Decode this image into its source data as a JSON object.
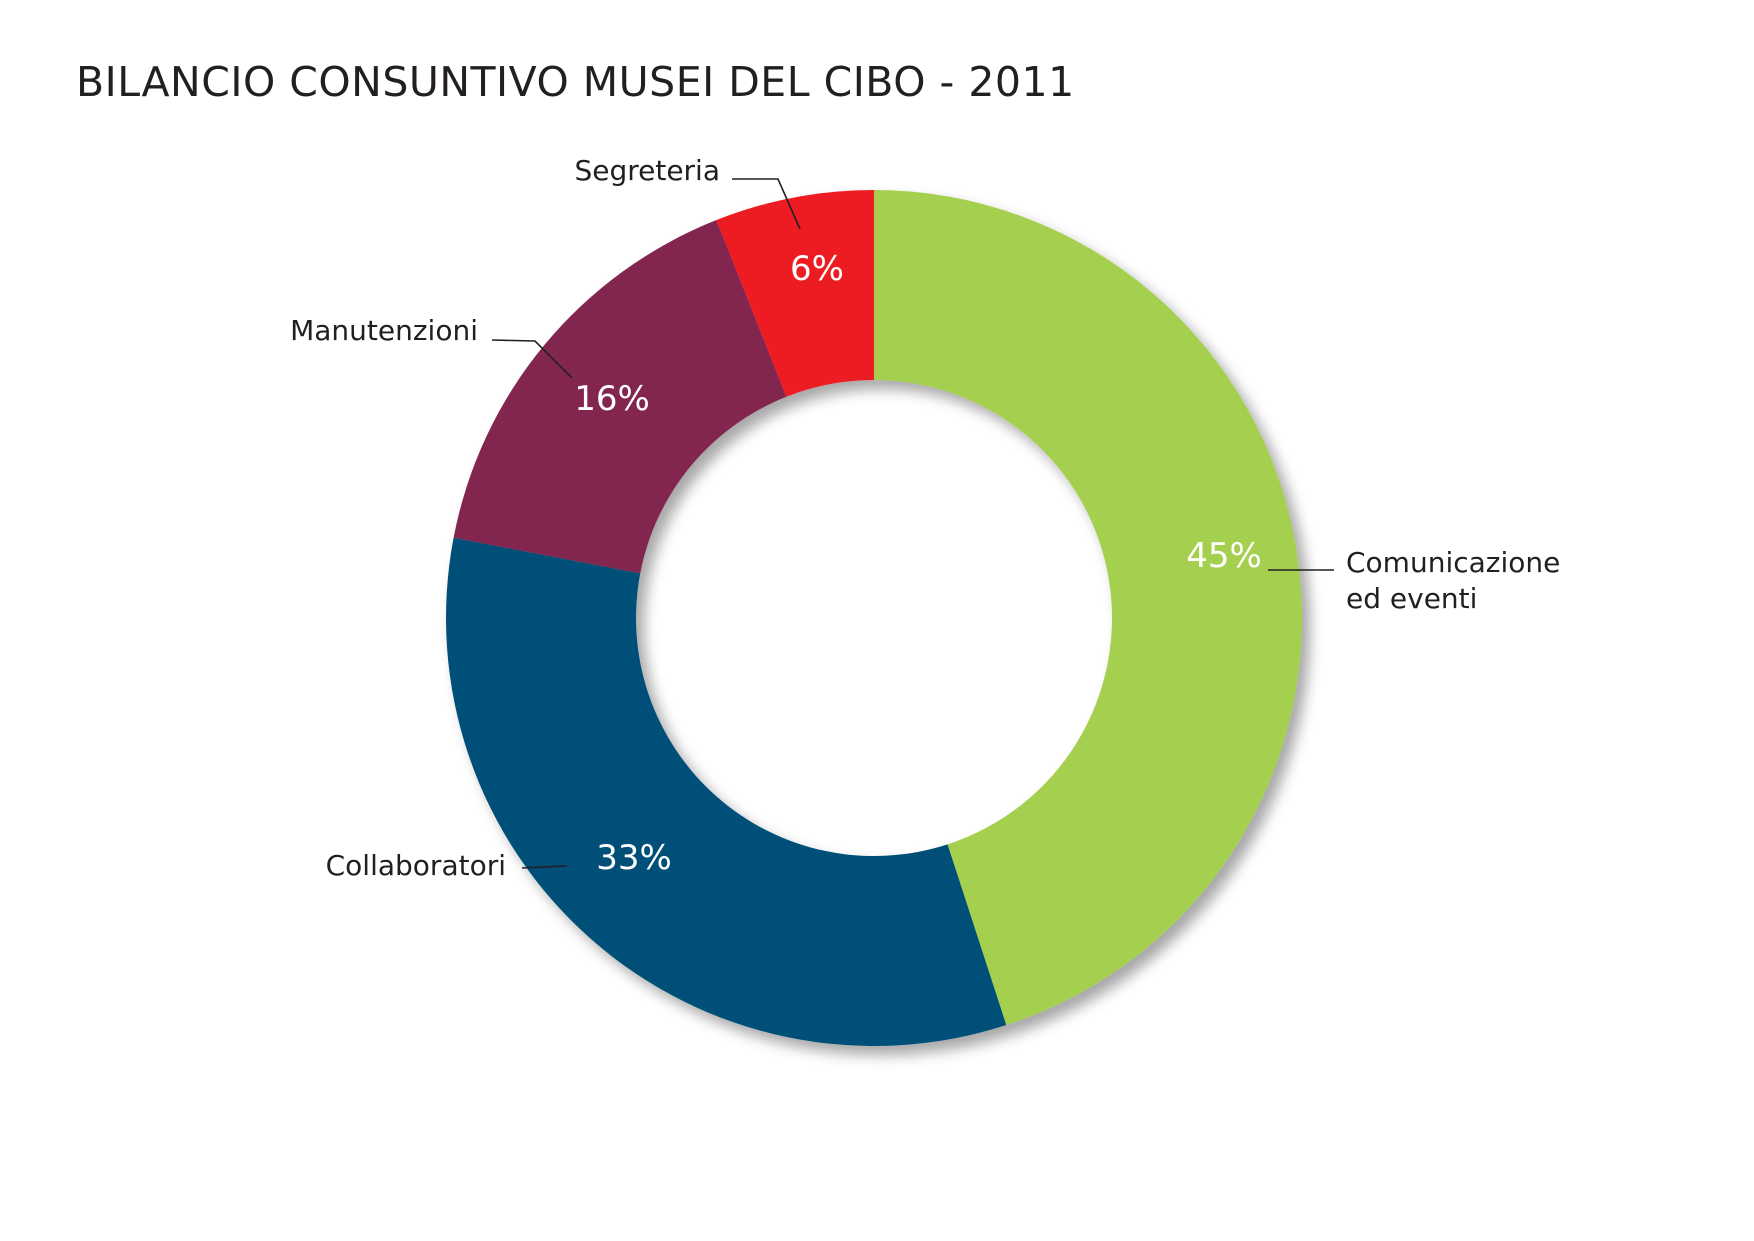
{
  "chart_data": {
    "type": "pie",
    "variant": "donut",
    "title": "BILANCIO CONSUNTIVO MUSEI DEL CIBO - 2011",
    "categories": [
      "Comunicazione ed eventi",
      "Collaboratori",
      "Manutenzioni",
      "Segreteria"
    ],
    "category_label_lines": [
      [
        "Comunicazione",
        "ed eventi"
      ],
      [
        "Collaboratori"
      ],
      [
        "Manutenzioni"
      ],
      [
        "Segreteria"
      ]
    ],
    "values": [
      45,
      33,
      16,
      6
    ],
    "value_labels": [
      "45%",
      "33%",
      "16%",
      "6%"
    ],
    "colors": [
      "#a5cf4f",
      "#065079",
      "#82284f",
      "#ed1c24"
    ],
    "start": "12 o'clock",
    "direction": "clockwise"
  }
}
